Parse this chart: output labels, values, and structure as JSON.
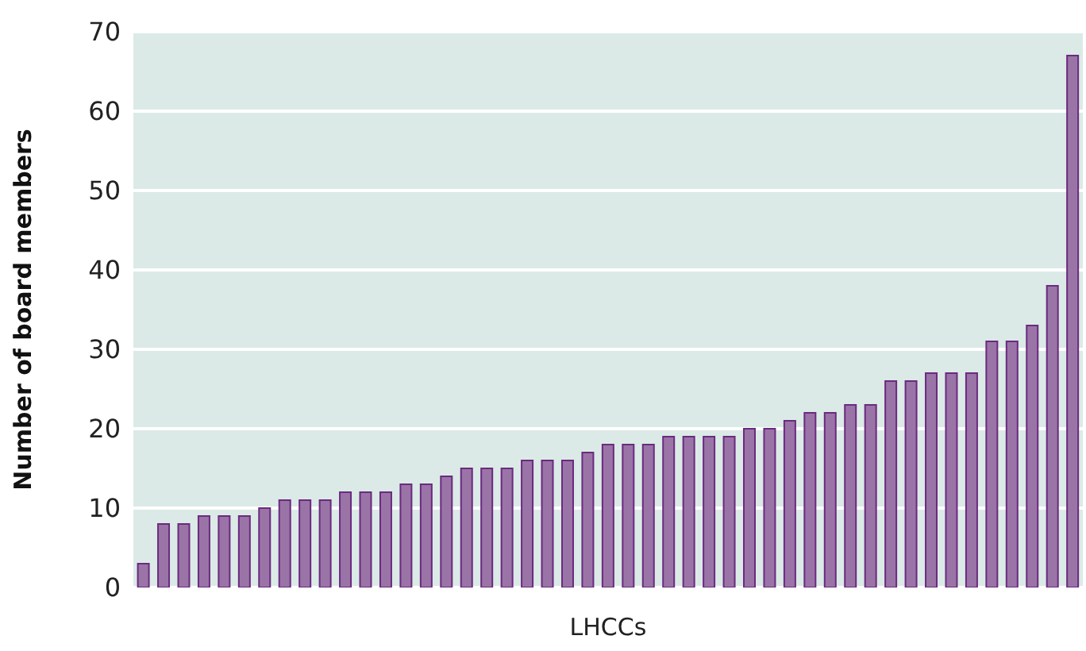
{
  "chart_data": {
    "type": "bar",
    "xlabel": "LHCCs",
    "ylabel": "Number of board members",
    "categories": [
      null,
      null,
      null,
      null,
      null,
      null,
      null,
      null,
      null,
      null,
      null,
      null,
      null,
      null,
      null,
      null,
      null,
      null,
      null,
      null,
      null,
      null,
      null,
      null,
      null,
      null,
      null,
      null,
      null,
      null,
      null,
      null,
      null,
      null,
      null,
      null,
      null,
      null,
      null,
      null,
      null,
      null,
      null,
      null,
      null,
      null,
      null
    ],
    "values": [
      3,
      8,
      8,
      9,
      9,
      9,
      10,
      11,
      11,
      11,
      12,
      12,
      12,
      13,
      13,
      14,
      15,
      15,
      15,
      16,
      16,
      16,
      17,
      18,
      18,
      18,
      19,
      19,
      19,
      19,
      20,
      20,
      21,
      22,
      22,
      23,
      23,
      26,
      26,
      27,
      27,
      27,
      31,
      31,
      33,
      38,
      67
    ],
    "color": "#9a74a6",
    "ylim": [
      0,
      70
    ],
    "yticks": [
      0,
      10,
      20,
      30,
      40,
      50,
      60,
      70
    ],
    "grid": "y"
  }
}
